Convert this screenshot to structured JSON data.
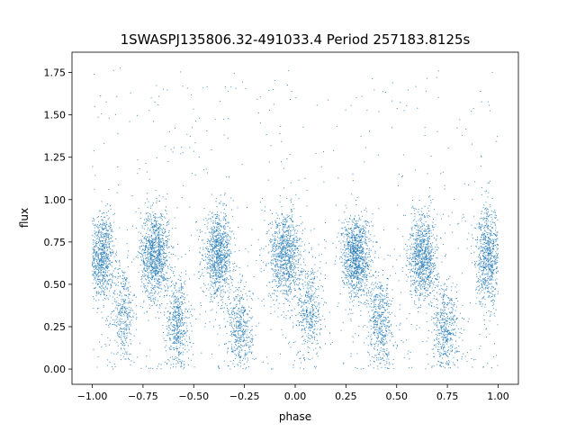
{
  "chart_data": {
    "type": "scatter",
    "title": "1SWASPJ135806.32-491033.4 Period 257183.8125s",
    "xlabel": "phase",
    "ylabel": "flux",
    "xlim": [
      -1.1,
      1.1
    ],
    "ylim": [
      -0.09,
      1.87
    ],
    "xticks": [
      -1.0,
      -0.75,
      -0.5,
      -0.25,
      0.0,
      0.25,
      0.5,
      0.75,
      1.0
    ],
    "xtick_labels": [
      "−1.00",
      "−0.75",
      "−0.50",
      "−0.25",
      "0.00",
      "0.25",
      "0.50",
      "0.75",
      "1.00"
    ],
    "yticks": [
      0.0,
      0.25,
      0.5,
      0.75,
      1.0,
      1.25,
      1.5,
      1.75
    ],
    "ytick_labels": [
      "0.00",
      "0.25",
      "0.50",
      "0.75",
      "1.00",
      "1.25",
      "1.50",
      "1.75"
    ],
    "grid": false,
    "marker_color": "#1f77b4",
    "series": [
      {
        "clusters": [
          {
            "x": -0.95,
            "y": 0.66,
            "sx": 0.028,
            "sy": 0.13,
            "n": 700
          },
          {
            "x": -0.85,
            "y": 0.33,
            "sx": 0.03,
            "sy": 0.15,
            "n": 350
          },
          {
            "x": -0.69,
            "y": 0.68,
            "sx": 0.035,
            "sy": 0.13,
            "n": 1000
          },
          {
            "x": -0.58,
            "y": 0.27,
            "sx": 0.03,
            "sy": 0.14,
            "n": 500
          },
          {
            "x": -0.38,
            "y": 0.67,
            "sx": 0.035,
            "sy": 0.12,
            "n": 900
          },
          {
            "x": -0.27,
            "y": 0.22,
            "sx": 0.03,
            "sy": 0.14,
            "n": 450
          },
          {
            "x": -0.05,
            "y": 0.67,
            "sx": 0.04,
            "sy": 0.13,
            "n": 900
          },
          {
            "x": 0.07,
            "y": 0.35,
            "sx": 0.03,
            "sy": 0.15,
            "n": 400
          },
          {
            "x": 0.3,
            "y": 0.66,
            "sx": 0.035,
            "sy": 0.12,
            "n": 1000
          },
          {
            "x": 0.42,
            "y": 0.28,
            "sx": 0.03,
            "sy": 0.14,
            "n": 500
          },
          {
            "x": 0.63,
            "y": 0.66,
            "sx": 0.035,
            "sy": 0.13,
            "n": 900
          },
          {
            "x": 0.74,
            "y": 0.22,
            "sx": 0.03,
            "sy": 0.14,
            "n": 450
          },
          {
            "x": 0.95,
            "y": 0.66,
            "sx": 0.03,
            "sy": 0.14,
            "n": 700
          }
        ],
        "background": {
          "n": 700,
          "xmin": -1.0,
          "xmax": 1.0,
          "ymin": 0.0,
          "ymax": 1.78
        }
      }
    ]
  }
}
